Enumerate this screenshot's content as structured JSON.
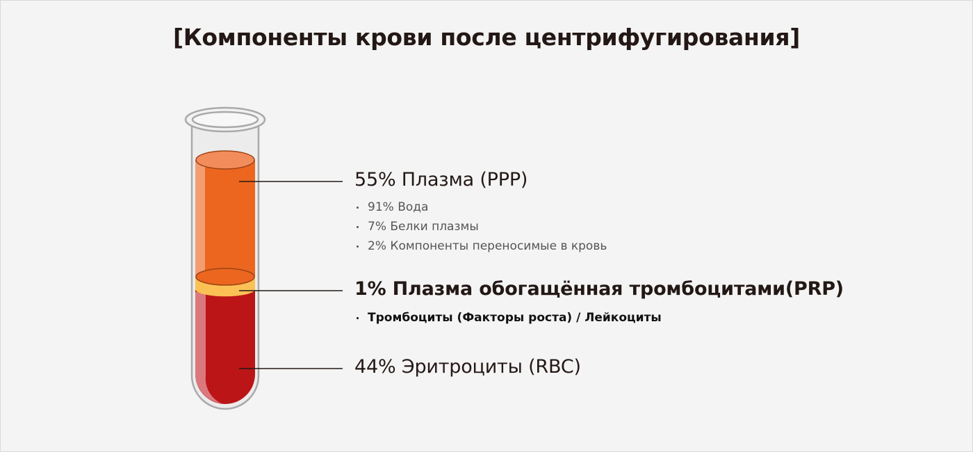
{
  "title": "[Компоненты крови после центрифугирования]",
  "colors": {
    "background": "#f4f4f4",
    "plasma": "#ec661f",
    "plasma_top": "#f38c5b",
    "prp_layer": "#fbc155",
    "rbc": "#bb1517",
    "tube_outline": "#a3a3a3",
    "text": "#231815"
  },
  "layers": [
    {
      "label": "55% Плазма (PPP)",
      "items": [
        "91% Вода",
        "7% Белки плазмы",
        "2% Компоненты переносимые в кровь"
      ]
    },
    {
      "label": "1% Плазма обогащённая тромбоцитами(PRP)",
      "items": [
        "Тромбоциты (Факторы роста) / Лейкоциты"
      ]
    },
    {
      "label": "44% Эритроциты (RBC)",
      "items": []
    }
  ]
}
